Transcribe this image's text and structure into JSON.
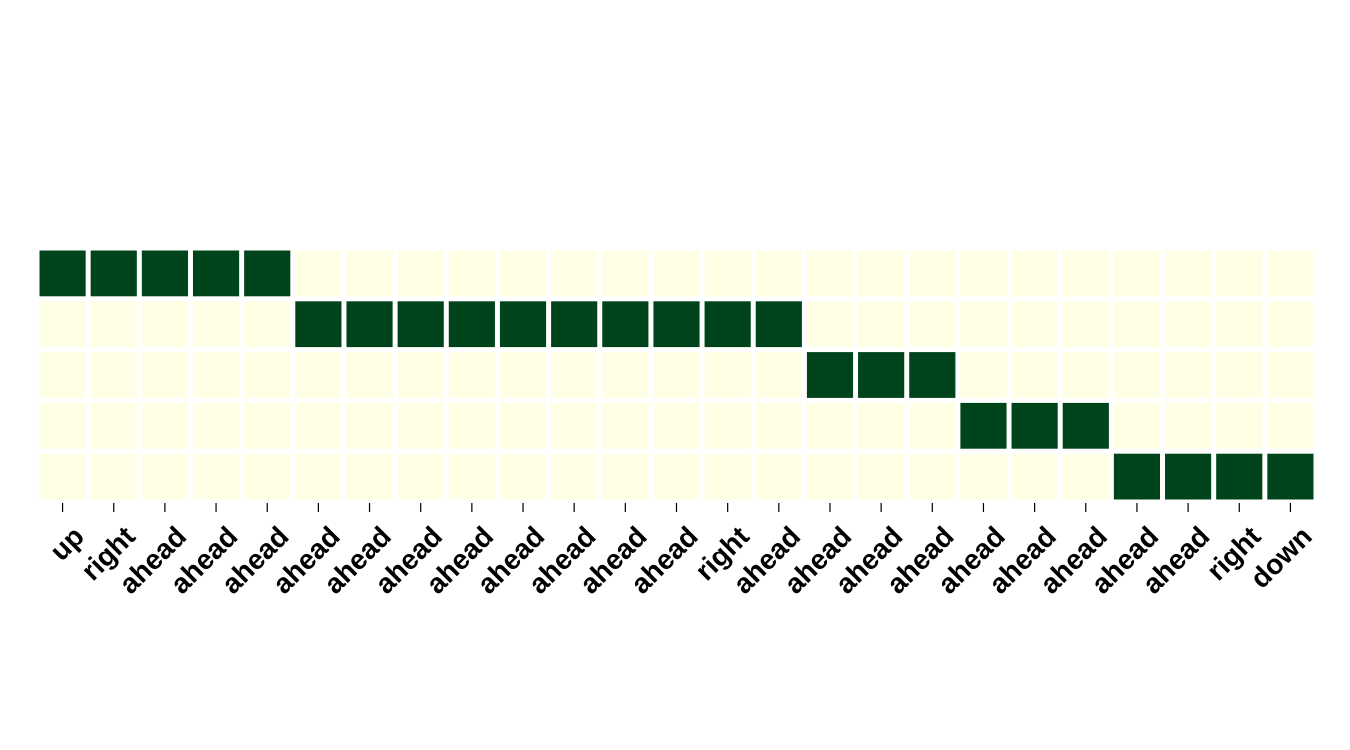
{
  "chart_data": {
    "type": "heatmap",
    "title": "",
    "xlabel": "",
    "ylabel": "",
    "x_tick_labels": [
      "up",
      "right",
      "ahead",
      "ahead",
      "ahead",
      "ahead",
      "ahead",
      "ahead",
      "ahead",
      "ahead",
      "ahead",
      "ahead",
      "ahead",
      "right",
      "ahead",
      "ahead",
      "ahead",
      "ahead",
      "ahead",
      "ahead",
      "ahead",
      "ahead",
      "ahead",
      "right",
      "down"
    ],
    "y_tick_labels": [],
    "values": [
      [
        1,
        1,
        1,
        1,
        1,
        0,
        0,
        0,
        0,
        0,
        0,
        0,
        0,
        0,
        0,
        0,
        0,
        0,
        0,
        0,
        0,
        0,
        0,
        0,
        0
      ],
      [
        0,
        0,
        0,
        0,
        0,
        1,
        1,
        1,
        1,
        1,
        1,
        1,
        1,
        1,
        1,
        0,
        0,
        0,
        0,
        0,
        0,
        0,
        0,
        0,
        0
      ],
      [
        0,
        0,
        0,
        0,
        0,
        0,
        0,
        0,
        0,
        0,
        0,
        0,
        0,
        0,
        0,
        1,
        1,
        1,
        0,
        0,
        0,
        0,
        0,
        0,
        0
      ],
      [
        0,
        0,
        0,
        0,
        0,
        0,
        0,
        0,
        0,
        0,
        0,
        0,
        0,
        0,
        0,
        0,
        0,
        0,
        1,
        1,
        1,
        0,
        0,
        0,
        0
      ],
      [
        0,
        0,
        0,
        0,
        0,
        0,
        0,
        0,
        0,
        0,
        0,
        0,
        0,
        0,
        0,
        0,
        0,
        0,
        0,
        0,
        0,
        1,
        1,
        1,
        1
      ]
    ],
    "colormap": {
      "low": "#ffffe5",
      "high": "#00441b"
    },
    "tick_label_rotation_deg": 45,
    "grid": false,
    "colorbar": false
  }
}
